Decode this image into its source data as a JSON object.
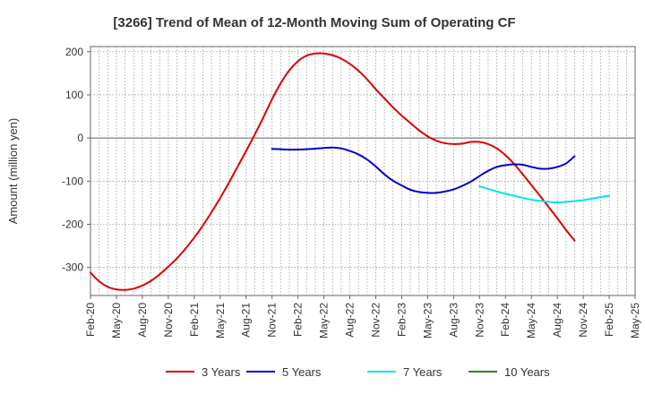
{
  "chart_data": {
    "type": "line",
    "title": "[3266]  Trend of Mean of 12-Month Moving Sum of Operating CF",
    "xlabel": "",
    "ylabel": "Amount (million yen)",
    "ylim": [
      -365,
      212
    ],
    "yticks": [
      200,
      100,
      0,
      -100,
      -200,
      -300
    ],
    "x_tick_labels": [
      "Feb-20",
      "May-20",
      "Aug-20",
      "Nov-20",
      "Feb-21",
      "May-21",
      "Aug-21",
      "Nov-21",
      "Feb-22",
      "May-22",
      "Aug-22",
      "Nov-22",
      "Feb-23",
      "May-23",
      "Aug-23",
      "Nov-23",
      "Feb-24",
      "May-24",
      "Aug-24",
      "Nov-24",
      "Feb-25",
      "May-25"
    ],
    "x_start": "Feb-20",
    "x_months_span": 63,
    "grid": true,
    "legend_position": "bottom",
    "series": [
      {
        "name": "3 Years",
        "color": "#dd0000",
        "points": [
          [
            0,
            -312
          ],
          [
            1,
            -332
          ],
          [
            2,
            -345
          ],
          [
            3,
            -351
          ],
          [
            4,
            -352
          ],
          [
            5,
            -349
          ],
          [
            6,
            -342
          ],
          [
            7,
            -331
          ],
          [
            8,
            -316
          ],
          [
            9,
            -298
          ],
          [
            10,
            -279
          ],
          [
            11,
            -256
          ],
          [
            12,
            -231
          ],
          [
            13,
            -203
          ],
          [
            14,
            -172
          ],
          [
            15,
            -139
          ],
          [
            16,
            -104
          ],
          [
            17,
            -67
          ],
          [
            18,
            -30
          ],
          [
            19,
            8
          ],
          [
            20,
            48
          ],
          [
            21,
            90
          ],
          [
            22,
            127
          ],
          [
            23,
            157
          ],
          [
            24,
            178
          ],
          [
            25,
            191
          ],
          [
            26,
            196
          ],
          [
            27,
            196
          ],
          [
            28,
            192
          ],
          [
            29,
            184
          ],
          [
            30,
            172
          ],
          [
            31,
            156
          ],
          [
            32,
            136
          ],
          [
            33,
            113
          ],
          [
            34,
            92
          ],
          [
            35,
            71
          ],
          [
            36,
            52
          ],
          [
            37,
            35
          ],
          [
            38,
            18
          ],
          [
            39,
            4
          ],
          [
            40,
            -6
          ],
          [
            41,
            -12
          ],
          [
            42,
            -14
          ],
          [
            43,
            -13
          ],
          [
            44,
            -9
          ],
          [
            45,
            -9
          ],
          [
            46,
            -14
          ],
          [
            47,
            -24
          ],
          [
            48,
            -40
          ],
          [
            49,
            -60
          ],
          [
            50,
            -84
          ],
          [
            51,
            -109
          ],
          [
            52,
            -134
          ],
          [
            53,
            -160
          ],
          [
            54,
            -186
          ],
          [
            55,
            -213
          ],
          [
            56,
            -238
          ]
        ]
      },
      {
        "name": "5 Years",
        "color": "#0000cc",
        "points": [
          [
            21,
            -25
          ],
          [
            23,
            -27
          ],
          [
            25,
            -26
          ],
          [
            27,
            -23
          ],
          [
            28,
            -22
          ],
          [
            29,
            -24
          ],
          [
            30,
            -30
          ],
          [
            31,
            -38
          ],
          [
            32,
            -50
          ],
          [
            33,
            -66
          ],
          [
            34,
            -84
          ],
          [
            35,
            -99
          ],
          [
            36,
            -110
          ],
          [
            37,
            -120
          ],
          [
            38,
            -125
          ],
          [
            39,
            -127
          ],
          [
            40,
            -127
          ],
          [
            41,
            -124
          ],
          [
            42,
            -119
          ],
          [
            43,
            -111
          ],
          [
            44,
            -101
          ],
          [
            45,
            -88
          ],
          [
            46,
            -76
          ],
          [
            47,
            -67
          ],
          [
            48,
            -63
          ],
          [
            49,
            -61
          ],
          [
            50,
            -62
          ],
          [
            51,
            -67
          ],
          [
            52,
            -71
          ],
          [
            53,
            -71
          ],
          [
            54,
            -67
          ],
          [
            55,
            -59
          ],
          [
            56,
            -42
          ]
        ]
      },
      {
        "name": "7 Years",
        "color": "#00e5ee",
        "points": [
          [
            45,
            -112
          ],
          [
            47,
            -124
          ],
          [
            49,
            -134
          ],
          [
            51,
            -143
          ],
          [
            53,
            -148
          ],
          [
            54,
            -149
          ],
          [
            55,
            -148
          ],
          [
            57,
            -144
          ],
          [
            59,
            -137
          ],
          [
            60,
            -134
          ]
        ]
      },
      {
        "name": "10 Years",
        "color": "#228b22",
        "points": []
      }
    ]
  }
}
